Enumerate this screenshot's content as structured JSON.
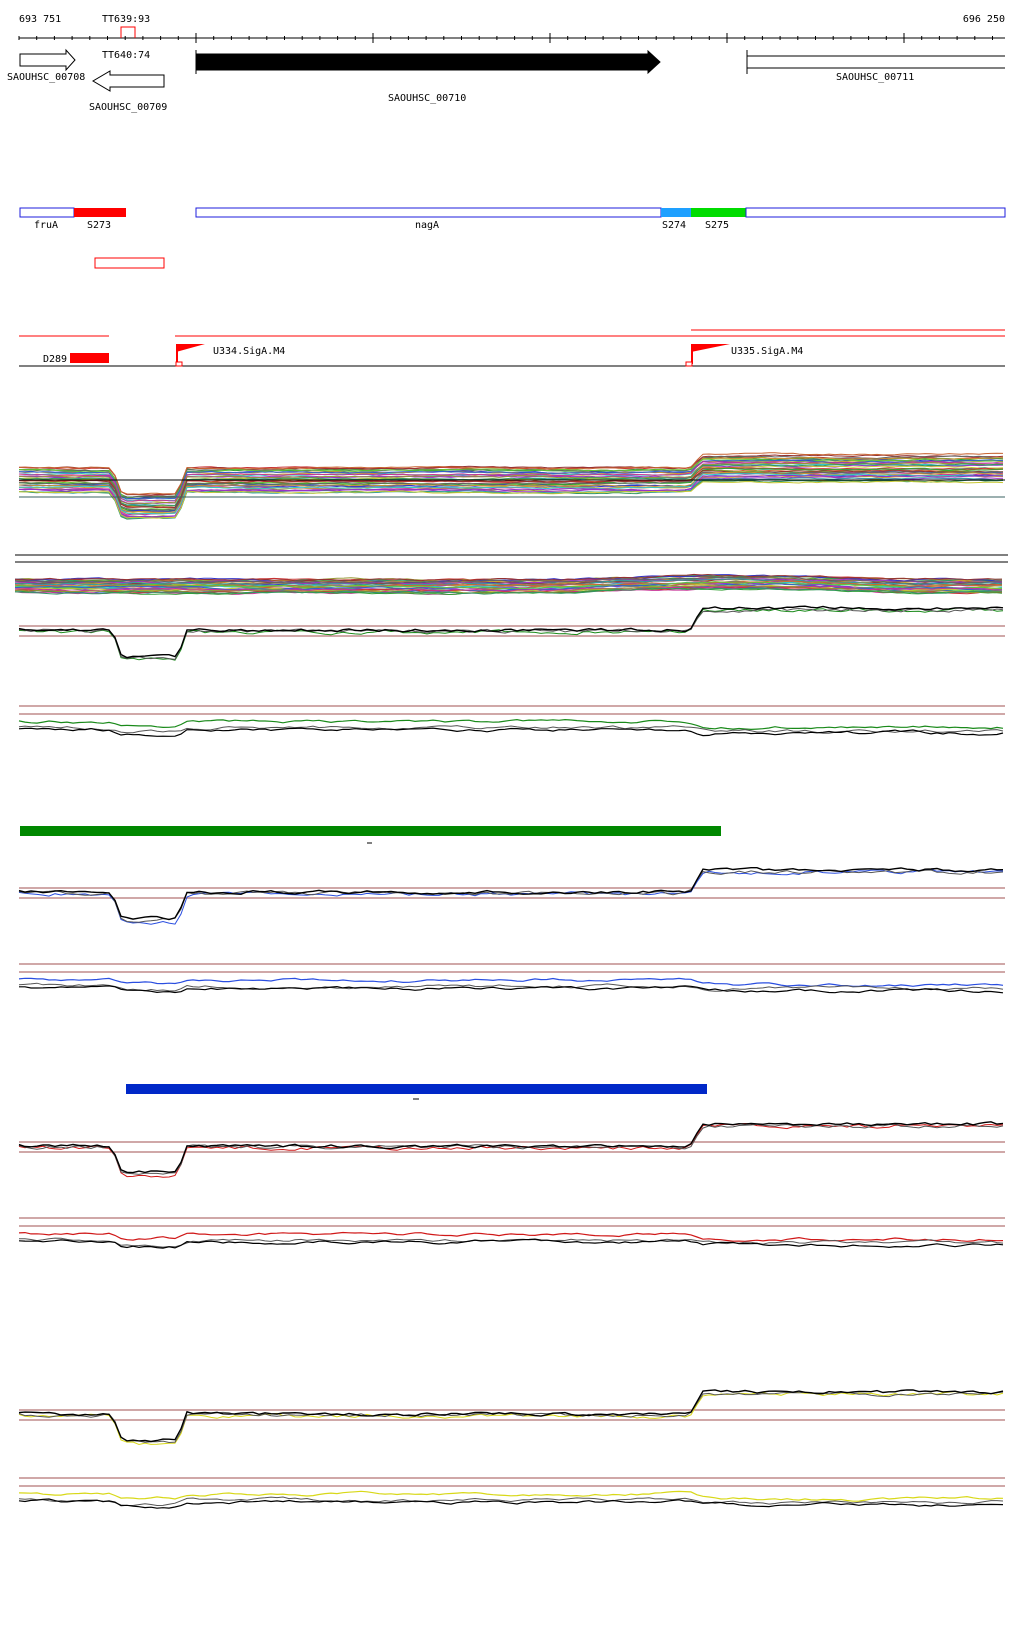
{
  "coordinates": {
    "start": "693 751",
    "end": "696 250"
  },
  "terminators": [
    {
      "label": "TT639:93"
    },
    {
      "label": "TT640:74"
    }
  ],
  "genes": [
    {
      "label": "SAOUHSC_00708",
      "strand": "+",
      "style": "outline"
    },
    {
      "label": "SAOUHSC_00709",
      "strand": "-",
      "style": "outline"
    },
    {
      "label": "SAOUHSC_00710",
      "strand": "+",
      "style": "filled"
    },
    {
      "label": "SAOUHSC_00711",
      "strand": "+",
      "style": "outline-truncated"
    }
  ],
  "segments": [
    {
      "label": "fruA",
      "color": "#1e1edc",
      "fill": false
    },
    {
      "label": "S273",
      "color": "#ff0000",
      "fill": true
    },
    {
      "label": "nagA",
      "color": "#1e1edc",
      "fill": false
    },
    {
      "label": "S274",
      "color": "#1ea0ff",
      "fill": true
    },
    {
      "label": "S275",
      "color": "#00dc00",
      "fill": true
    }
  ],
  "promoters": [
    {
      "label": "U334.SigA.M4"
    },
    {
      "label": "U335.SigA.M4"
    }
  ],
  "deletions": [
    {
      "label": "D289"
    }
  ],
  "bars": [
    {
      "name": "green-condition-bar",
      "color": "#008800"
    },
    {
      "name": "blue-condition-bar",
      "color": "#0028c8"
    }
  ],
  "colors": {
    "green_trace": "#1a8a1a",
    "blue_trace": "#2a4ee0",
    "red_trace": "#d01818",
    "yellow_trace": "#d8d818",
    "reference_line": "#a05050",
    "red_feature": "#ff0000"
  }
}
